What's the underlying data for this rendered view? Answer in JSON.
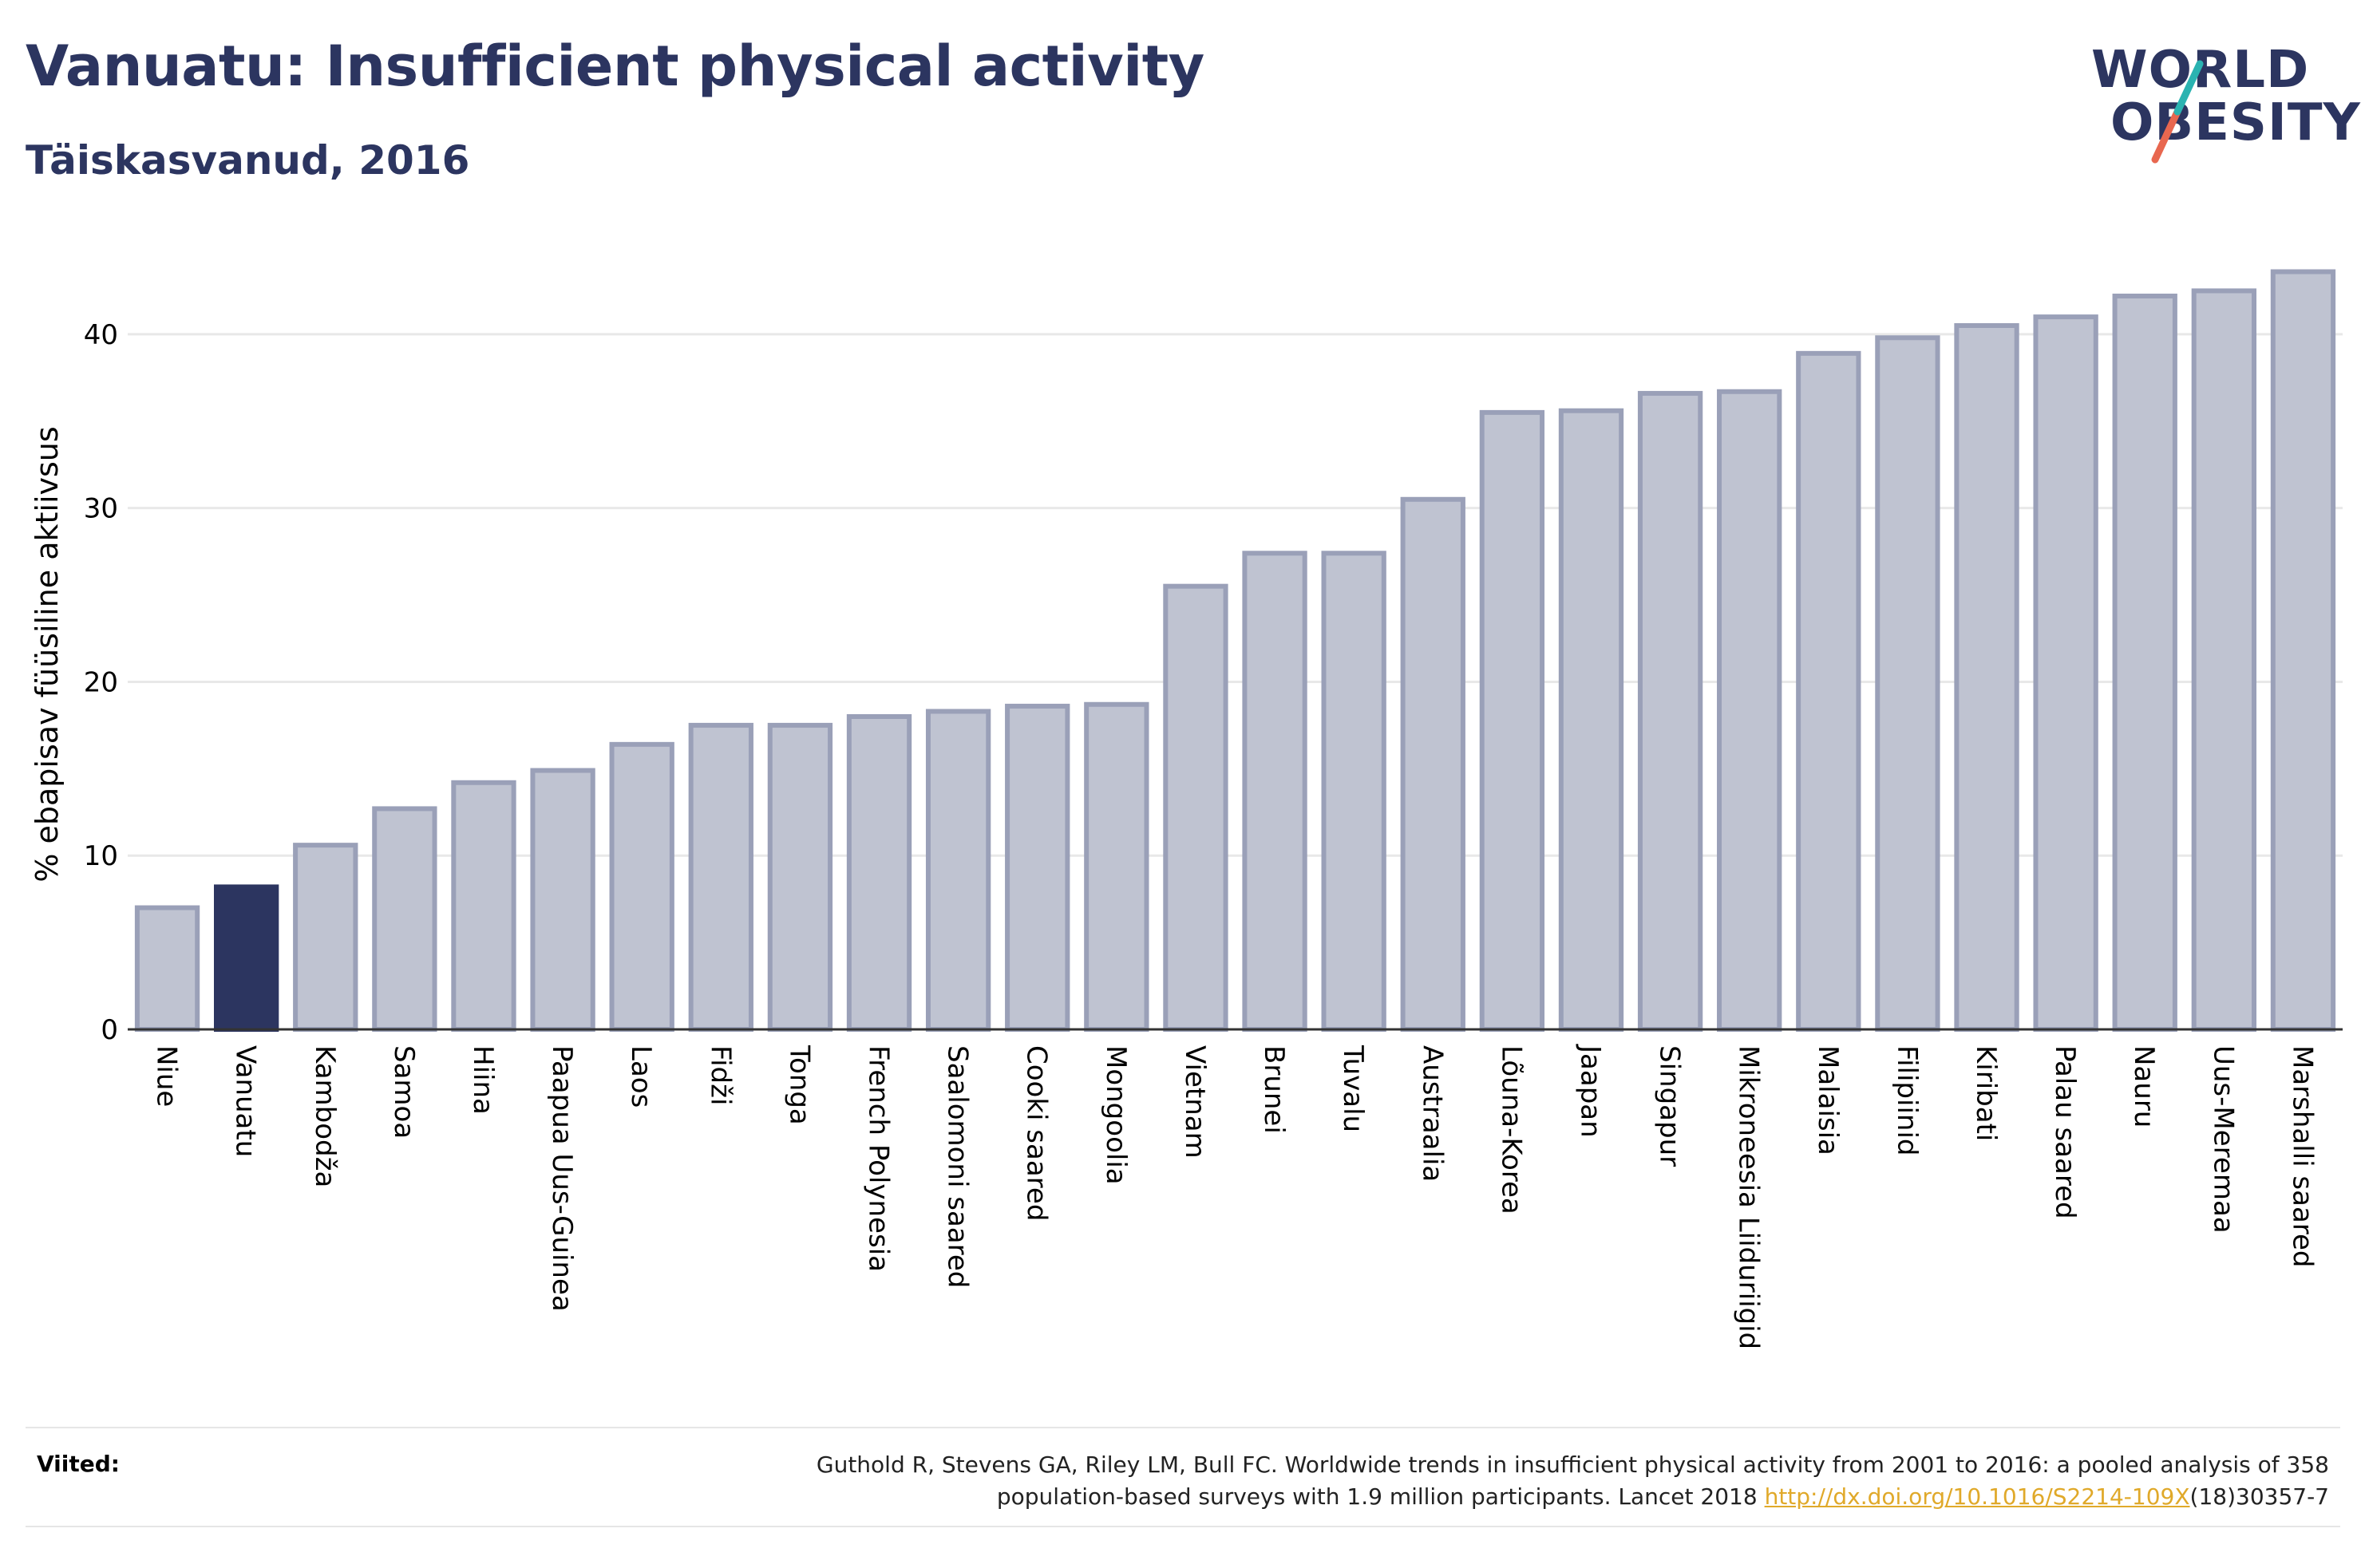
{
  "header": {
    "title": "Vanuatu: Insufficient physical activity",
    "subtitle": "Täiskasvanud, 2016"
  },
  "logo": {
    "line1": "WORLD",
    "line2": "OBESITY",
    "slash_colors": [
      "#2ab3b1",
      "#e8674f"
    ]
  },
  "colors": {
    "bar": "#bfc3d1",
    "bar_stroke": "#9aa0b8",
    "highlight": "#2c3560",
    "grid": "#e8e8e8",
    "axis": "#333333"
  },
  "chart_data": {
    "type": "bar",
    "ylabel": "% ebapisav füüsiline aktiivsus",
    "xlabel": "",
    "ylim": [
      0,
      45
    ],
    "yticks": [
      0,
      10,
      20,
      30,
      40
    ],
    "grid": true,
    "highlight": "Vanuatu",
    "categories": [
      "Niue",
      "Vanuatu",
      "Kambodža",
      "Samoa",
      "Hiina",
      "Paapua Uus-Guinea",
      "Laos",
      "Fidži",
      "Tonga",
      "French Polynesia",
      "Saalomoni saared",
      "Cooki saared",
      "Mongoolia",
      "Vietnam",
      "Brunei",
      "Tuvalu",
      "Austraalia",
      "Lõuna-Korea",
      "Jaapan",
      "Singapur",
      "Mikroneesia Liiduriigid",
      "Malaisia",
      "Filipiinid",
      "Kiribati",
      "Palau saared",
      "Nauru",
      "Uus-Meremaa",
      "Marshalli saared"
    ],
    "values": [
      7.0,
      8.2,
      10.6,
      12.7,
      14.2,
      14.9,
      16.4,
      17.5,
      17.5,
      18.0,
      18.3,
      18.6,
      18.7,
      25.5,
      27.4,
      27.4,
      30.5,
      35.5,
      35.6,
      36.6,
      36.7,
      38.9,
      39.8,
      40.5,
      41.0,
      42.2,
      42.5,
      43.6
    ]
  },
  "footer": {
    "ref_label": "Viited:",
    "ref_text_1": "Guthold R, Stevens GA, Riley LM, Bull FC. Worldwide trends in insufficient physical activity from 2001 to 2016: a pooled analysis of 358",
    "ref_text_2": "population-based surveys with 1.9 million participants. Lancet 2018 ",
    "ref_link": "http://dx.doi.org/10.1016/S2214-109X",
    "ref_text_3": "(18)30357-7"
  }
}
